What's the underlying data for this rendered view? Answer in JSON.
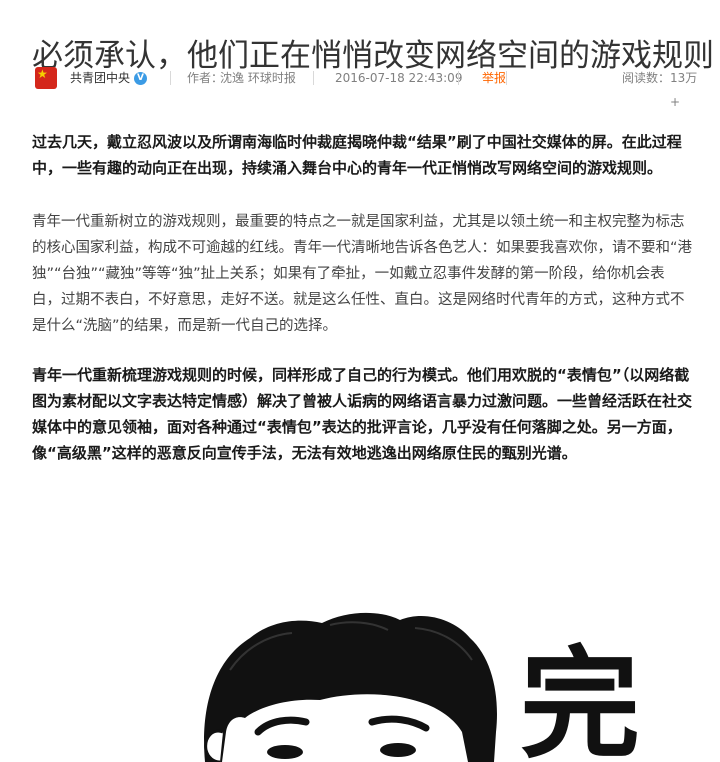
{
  "article": {
    "title": "必须承认，他们正在悄悄改变网络空间的游戏规则",
    "meta": {
      "author": "共青团中央",
      "writer_label": "作者：",
      "writer": "沈逸 环球时报",
      "date": "2016-07-18 22:43:09",
      "report": "举报",
      "reads_label": "阅读数：",
      "reads": "13万+"
    },
    "paragraphs": [
      "过去几天，戴立忍风波以及所谓南海临时仲裁庭揭晓仲裁“结果”刷了中国社交媒体的屏。在此过程中，一些有趣的动向正在出现，持续涌入舞台中心的青年一代正悄悄改写网络空间的游戏规则。",
      "青年一代重新树立的游戏规则，最重要的特点之一就是国家利益，尤其是以领土统一和主权完整为标志的核心国家利益，构成不可逾越的红线。青年一代清晰地告诉各色艺人：如果要我喜欢你，请不要和“港独”“台独”“藏独”等等“独”扯上关系；如果有了牵扯，一如戴立忍事件发酵的第一阶段，给你机会表白，过期不表白，不好意思，走好不送。就是这么任性、直白。这是网络时代青年的方式，这种方式不是什么“洗脑”的结果，而是新一代自己的选择。",
      "青年一代重新梳理游戏规则的时候，同样形成了自己的行为模式。他们用欢脱的“表情包”（以网络截图为素材配以文字表达特定情感）解决了曾被人诟病的网络语言暴力过激问题。一些曾经活跃在社交媒体中的意见领袖，面对各种通过“表情包”表达的批评言论，几乎没有任何落脚之处。另一方面，像“高级黑”这样的恶意反向宣传手法，无法有效地逃逸出网络原住民的甄别光谱。"
    ],
    "illustration": {
      "caption_glyph": "完"
    }
  },
  "colors": {
    "accent": "#ff6600",
    "verified": "#3b9be5",
    "avatar_red": "#d4271b"
  }
}
